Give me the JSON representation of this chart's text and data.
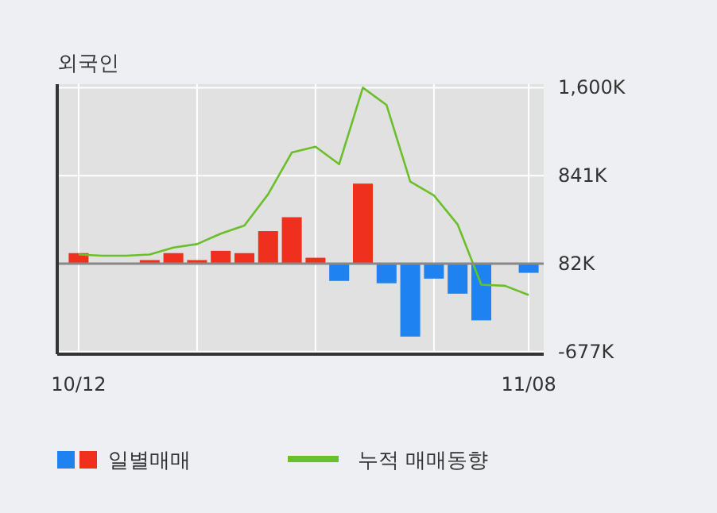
{
  "chart_data": {
    "type": "bar",
    "title": "외국인",
    "categories": [
      "10/12",
      null,
      null,
      null,
      null,
      null,
      null,
      null,
      null,
      null,
      null,
      null,
      null,
      null,
      null,
      null,
      null,
      null,
      null,
      "11/08"
    ],
    "series": [
      {
        "name": "일별매매",
        "colors": [
          "#f0301e",
          "#f0301e",
          "#f0301e",
          "#f0301e",
          "#f0301e",
          "#f0301e",
          "#f0301e",
          "#f0301e",
          "#f0301e",
          "#f0301e",
          "#f0301e",
          "#1e82f0",
          "#f0301e",
          "#1e82f0",
          "#1e82f0",
          "#1e82f0",
          "#1e82f0",
          "#1e82f0",
          "#1e82f0",
          "#1e82f0"
        ],
        "axis": "y2",
        "base": [
          82,
          null,
          null,
          82,
          82,
          82,
          82,
          82,
          82,
          82,
          82,
          82,
          82,
          82,
          82,
          82,
          82,
          82,
          null,
          82
        ],
        "values": [
          90,
          null,
          null,
          30,
          90,
          30,
          110,
          90,
          280,
          400,
          50,
          -150,
          690,
          -170,
          -630,
          -130,
          -260,
          -490,
          null,
          -80
        ]
      },
      {
        "name": "누적 매매동향",
        "type": "line",
        "axis": "y2",
        "color": "#6abf2a",
        "values": [
          160,
          150,
          150,
          160,
          220,
          250,
          340,
          410,
          680,
          1040,
          1090,
          940,
          1600,
          1450,
          790,
          670,
          420,
          -100,
          -110,
          -190
        ]
      }
    ],
    "y2lim": [
      -700,
      1630
    ],
    "y2ticks": [
      {
        "value": 1600,
        "label": "1,600K"
      },
      {
        "value": 841,
        "label": "841K"
      },
      {
        "value": 82,
        "label": "82K"
      },
      {
        "value": -677,
        "label": "-677K"
      }
    ],
    "ref_lines": [
      {
        "axis": "y2",
        "value": 82,
        "color": "#888888"
      }
    ],
    "grid": true,
    "legend": "bottom"
  }
}
